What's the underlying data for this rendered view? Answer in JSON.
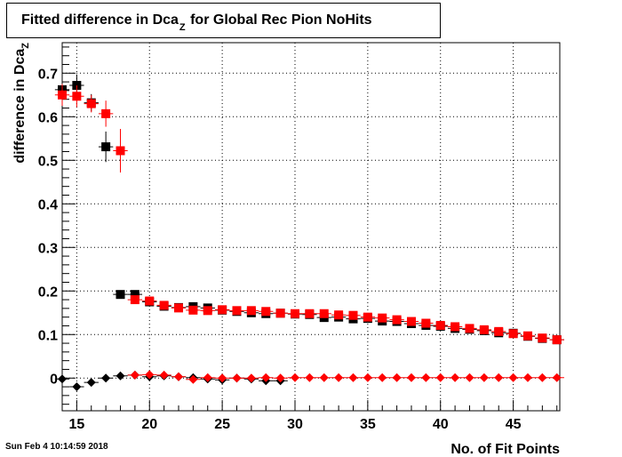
{
  "title": {
    "prefix": "Fitted difference in Dca",
    "subscript": "Z",
    "suffix": " for Global Rec Pion NoHits"
  },
  "timestamp": "Sun Feb  4 10:14:59 2018",
  "chart_data": {
    "type": "scatter",
    "xlabel": "No. of Fit Points",
    "ylabel": "difference in Dca",
    "ylabel_subscript": "Z",
    "xlim": [
      14,
      48.2
    ],
    "ylim": [
      -0.075,
      0.77
    ],
    "xticks": [
      15,
      20,
      25,
      30,
      35,
      40,
      45
    ],
    "yticks": [
      0,
      0.1,
      0.2,
      0.3,
      0.4,
      0.5,
      0.6,
      0.7
    ],
    "grid": true,
    "series": [
      {
        "marker": "square",
        "color": "#000000",
        "points": [
          {
            "x": 14,
            "y": 0.662,
            "err": 0.025
          },
          {
            "x": 15,
            "y": 0.672,
            "err": 0.025
          },
          {
            "x": 16,
            "y": 0.632,
            "err": 0.02
          },
          {
            "x": 17,
            "y": 0.531,
            "err": 0.035
          },
          {
            "x": 18,
            "y": 0.192,
            "err": 0.005
          },
          {
            "x": 19,
            "y": 0.192,
            "err": 0.005
          },
          {
            "x": 20,
            "y": 0.175,
            "err": 0.004
          },
          {
            "x": 21,
            "y": 0.165,
            "err": 0.004
          },
          {
            "x": 22,
            "y": 0.162,
            "err": 0.004
          },
          {
            "x": 23,
            "y": 0.164,
            "err": 0.004
          },
          {
            "x": 24,
            "y": 0.161,
            "err": 0.004
          },
          {
            "x": 25,
            "y": 0.156,
            "err": 0.004
          },
          {
            "x": 26,
            "y": 0.153,
            "err": 0.004
          },
          {
            "x": 27,
            "y": 0.15,
            "err": 0.004
          },
          {
            "x": 28,
            "y": 0.148,
            "err": 0.004
          },
          {
            "x": 29,
            "y": 0.149,
            "err": 0.004
          },
          {
            "x": 30,
            "y": 0.147,
            "err": 0.004
          },
          {
            "x": 31,
            "y": 0.146,
            "err": 0.004
          },
          {
            "x": 32,
            "y": 0.139,
            "err": 0.004
          },
          {
            "x": 33,
            "y": 0.14,
            "err": 0.004
          },
          {
            "x": 34,
            "y": 0.136,
            "err": 0.004
          },
          {
            "x": 35,
            "y": 0.137,
            "err": 0.004
          },
          {
            "x": 36,
            "y": 0.131,
            "err": 0.004
          },
          {
            "x": 37,
            "y": 0.13,
            "err": 0.004
          },
          {
            "x": 38,
            "y": 0.125,
            "err": 0.004
          },
          {
            "x": 39,
            "y": 0.121,
            "err": 0.004
          },
          {
            "x": 40,
            "y": 0.119,
            "err": 0.004
          },
          {
            "x": 41,
            "y": 0.114,
            "err": 0.004
          },
          {
            "x": 42,
            "y": 0.112,
            "err": 0.004
          },
          {
            "x": 43,
            "y": 0.109,
            "err": 0.004
          },
          {
            "x": 44,
            "y": 0.104,
            "err": 0.004
          },
          {
            "x": 45,
            "y": 0.103,
            "err": 0.004
          },
          {
            "x": 46,
            "y": 0.096,
            "err": 0.004
          },
          {
            "x": 47,
            "y": 0.091,
            "err": 0.004
          },
          {
            "x": 48,
            "y": 0.088,
            "err": 0.004
          }
        ]
      },
      {
        "marker": "square",
        "color": "#ff0000",
        "points": [
          {
            "x": 14,
            "y": 0.65,
            "err": 0.025
          },
          {
            "x": 15,
            "y": 0.647,
            "err": 0.025
          },
          {
            "x": 16,
            "y": 0.63,
            "err": 0.02
          },
          {
            "x": 17,
            "y": 0.607,
            "err": 0.03
          },
          {
            "x": 18,
            "y": 0.522,
            "err": 0.05
          },
          {
            "x": 19,
            "y": 0.18,
            "err": 0.005
          },
          {
            "x": 20,
            "y": 0.177,
            "err": 0.004
          },
          {
            "x": 21,
            "y": 0.167,
            "err": 0.004
          },
          {
            "x": 22,
            "y": 0.161,
            "err": 0.004
          },
          {
            "x": 23,
            "y": 0.156,
            "err": 0.004
          },
          {
            "x": 24,
            "y": 0.155,
            "err": 0.004
          },
          {
            "x": 25,
            "y": 0.157,
            "err": 0.004
          },
          {
            "x": 26,
            "y": 0.155,
            "err": 0.004
          },
          {
            "x": 27,
            "y": 0.155,
            "err": 0.004
          },
          {
            "x": 28,
            "y": 0.153,
            "err": 0.004
          },
          {
            "x": 29,
            "y": 0.149,
            "err": 0.004
          },
          {
            "x": 30,
            "y": 0.148,
            "err": 0.004
          },
          {
            "x": 31,
            "y": 0.148,
            "err": 0.004
          },
          {
            "x": 32,
            "y": 0.148,
            "err": 0.004
          },
          {
            "x": 33,
            "y": 0.145,
            "err": 0.004
          },
          {
            "x": 34,
            "y": 0.144,
            "err": 0.004
          },
          {
            "x": 35,
            "y": 0.14,
            "err": 0.004
          },
          {
            "x": 36,
            "y": 0.138,
            "err": 0.004
          },
          {
            "x": 37,
            "y": 0.134,
            "err": 0.004
          },
          {
            "x": 38,
            "y": 0.13,
            "err": 0.004
          },
          {
            "x": 39,
            "y": 0.126,
            "err": 0.004
          },
          {
            "x": 40,
            "y": 0.121,
            "err": 0.004
          },
          {
            "x": 41,
            "y": 0.118,
            "err": 0.004
          },
          {
            "x": 42,
            "y": 0.114,
            "err": 0.004
          },
          {
            "x": 43,
            "y": 0.111,
            "err": 0.004
          },
          {
            "x": 44,
            "y": 0.107,
            "err": 0.004
          },
          {
            "x": 45,
            "y": 0.102,
            "err": 0.004
          },
          {
            "x": 46,
            "y": 0.097,
            "err": 0.004
          },
          {
            "x": 47,
            "y": 0.092,
            "err": 0.004
          },
          {
            "x": 48,
            "y": 0.088,
            "err": 0.004
          }
        ]
      },
      {
        "marker": "diamond",
        "color": "#000000",
        "points": [
          {
            "x": 14,
            "y": -0.002,
            "err": 0.005
          },
          {
            "x": 15,
            "y": -0.02,
            "err": 0.005
          },
          {
            "x": 16,
            "y": -0.01,
            "err": 0.004
          },
          {
            "x": 17,
            "y": 0.0,
            "err": 0.004
          },
          {
            "x": 18,
            "y": 0.005,
            "err": 0.003
          },
          {
            "x": 19,
            "y": 0.007,
            "err": 0.003
          },
          {
            "x": 20,
            "y": 0.003,
            "err": 0.003
          },
          {
            "x": 21,
            "y": 0.005,
            "err": 0.003
          },
          {
            "x": 22,
            "y": 0.003,
            "err": 0.003
          },
          {
            "x": 23,
            "y": 0.001,
            "err": 0.003
          },
          {
            "x": 24,
            "y": -0.002,
            "err": 0.003
          },
          {
            "x": 25,
            "y": -0.004,
            "err": 0.003
          },
          {
            "x": 26,
            "y": 0.0,
            "err": 0.003
          },
          {
            "x": 27,
            "y": -0.002,
            "err": 0.003
          },
          {
            "x": 28,
            "y": -0.006,
            "err": 0.003
          },
          {
            "x": 29,
            "y": -0.006,
            "err": 0.003
          }
        ]
      },
      {
        "marker": "diamond",
        "color": "#ff0000",
        "points": [
          {
            "x": 19,
            "y": 0.007,
            "err": 0.003
          },
          {
            "x": 20,
            "y": 0.008,
            "err": 0.003
          },
          {
            "x": 21,
            "y": 0.007,
            "err": 0.003
          },
          {
            "x": 22,
            "y": 0.003,
            "err": 0.003
          },
          {
            "x": 23,
            "y": -0.003,
            "err": 0.003
          },
          {
            "x": 24,
            "y": 0.001,
            "err": 0.003
          },
          {
            "x": 25,
            "y": 0.0,
            "err": 0.003
          },
          {
            "x": 26,
            "y": 0.0,
            "err": 0.003
          },
          {
            "x": 27,
            "y": 0.0,
            "err": 0.003
          },
          {
            "x": 28,
            "y": 0.001,
            "err": 0.003
          },
          {
            "x": 29,
            "y": 0.0,
            "err": 0.003
          },
          {
            "x": 30,
            "y": 0.001,
            "err": 0.003
          },
          {
            "x": 31,
            "y": 0.001,
            "err": 0.003
          },
          {
            "x": 32,
            "y": 0.001,
            "err": 0.003
          },
          {
            "x": 33,
            "y": 0.001,
            "err": 0.003
          },
          {
            "x": 34,
            "y": 0.001,
            "err": 0.003
          },
          {
            "x": 35,
            "y": 0.001,
            "err": 0.003
          },
          {
            "x": 36,
            "y": 0.001,
            "err": 0.003
          },
          {
            "x": 37,
            "y": 0.001,
            "err": 0.003
          },
          {
            "x": 38,
            "y": 0.001,
            "err": 0.003
          },
          {
            "x": 39,
            "y": 0.001,
            "err": 0.003
          },
          {
            "x": 40,
            "y": 0.001,
            "err": 0.003
          },
          {
            "x": 41,
            "y": 0.001,
            "err": 0.003
          },
          {
            "x": 42,
            "y": 0.001,
            "err": 0.003
          },
          {
            "x": 43,
            "y": 0.001,
            "err": 0.003
          },
          {
            "x": 44,
            "y": 0.001,
            "err": 0.003
          },
          {
            "x": 45,
            "y": 0.001,
            "err": 0.003
          },
          {
            "x": 46,
            "y": 0.001,
            "err": 0.003
          },
          {
            "x": 47,
            "y": 0.001,
            "err": 0.003
          },
          {
            "x": 48,
            "y": 0.001,
            "err": 0.003
          }
        ]
      }
    ]
  }
}
